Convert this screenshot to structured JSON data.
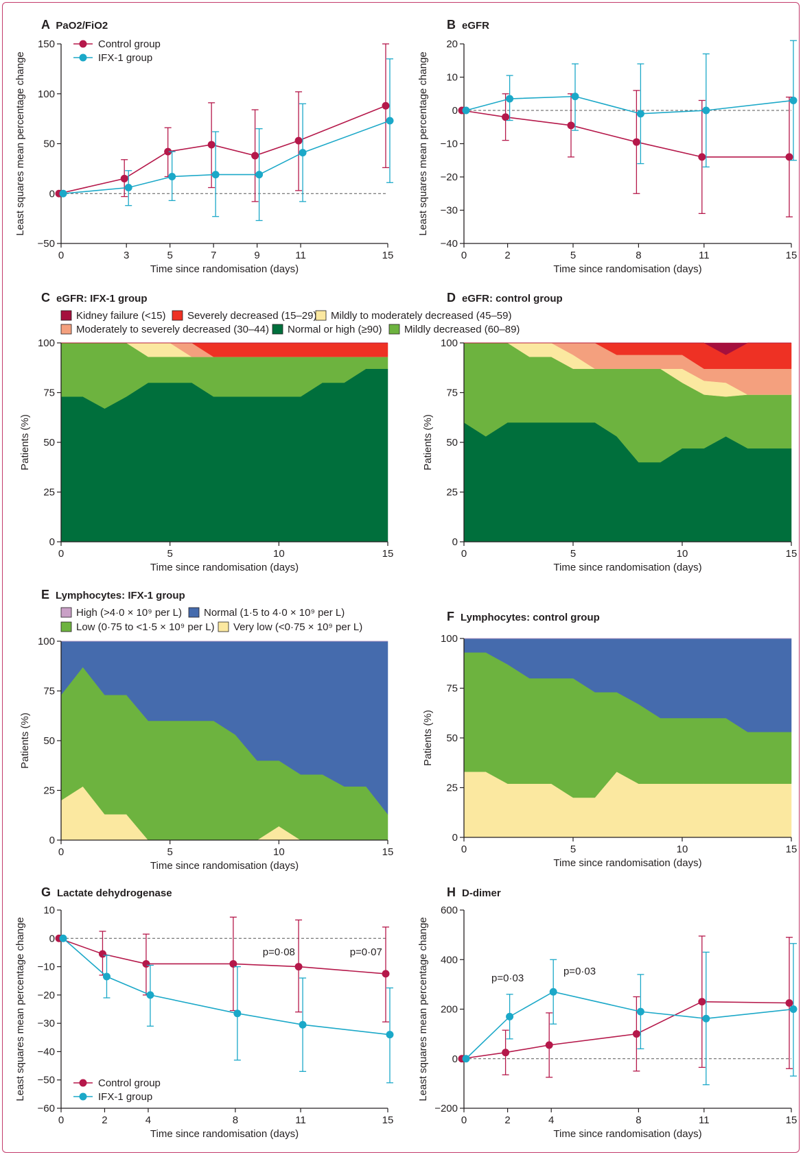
{
  "colors": {
    "control": "#b5184a",
    "ifx": "#1ba8c8",
    "kidney_failure": "#a50f3d",
    "severely_decreased": "#ee3124",
    "mildly_to_moderately": "#fbe8a0",
    "moderately_to_severely": "#f4a07e",
    "normal_or_high": "#006f3c",
    "mildly_decreased": "#6db33f",
    "lym_high": "#c9a0c6",
    "lym_normal": "#456bad",
    "lym_low": "#6db33f",
    "lym_very_low": "#fbe8a0"
  },
  "chart_data": [
    {
      "id": "A",
      "letter": "A",
      "type": "line",
      "title": "PaO2/FiO2",
      "xlabel": "Time since randomisation (days)",
      "ylabel": "Least squares mean percentage change",
      "xlim": [
        0,
        15
      ],
      "ylim": [
        -50,
        150
      ],
      "xticks": [
        "0",
        "3",
        "5",
        "7",
        "9",
        "11",
        "15"
      ],
      "yticks": [
        "150",
        "100",
        "50",
        "0",
        "−50"
      ],
      "legend": [
        "Control group",
        "IFX-1 group"
      ],
      "series": [
        {
          "name": "Control group",
          "x": [
            0,
            3,
            5,
            7,
            9,
            11,
            15
          ],
          "y": [
            0,
            15,
            42,
            49,
            38,
            53,
            88
          ],
          "lower": [
            0,
            -3,
            17,
            6,
            -8,
            3,
            26
          ],
          "upper": [
            0,
            34,
            66,
            91,
            84,
            102,
            150
          ]
        },
        {
          "name": "IFX-1 group",
          "x": [
            0,
            3,
            5,
            7,
            9,
            11,
            15
          ],
          "y": [
            0,
            6,
            17,
            19,
            19,
            41,
            73
          ],
          "lower": [
            0,
            -12,
            -7,
            -23,
            -27,
            -8,
            11
          ],
          "upper": [
            0,
            23,
            42,
            62,
            65,
            90,
            135
          ]
        }
      ]
    },
    {
      "id": "B",
      "letter": "B",
      "type": "line",
      "title": "eGFR",
      "xlabel": "Time since randomisation (days)",
      "ylabel": "Least squares mean percentage change",
      "xlim": [
        0,
        15
      ],
      "ylim": [
        -40,
        20
      ],
      "xticks": [
        "0",
        "2",
        "5",
        "8",
        "11",
        "15"
      ],
      "yticks": [
        "20",
        "10",
        "0",
        "−10",
        "−20",
        "−30",
        "−40"
      ],
      "series": [
        {
          "name": "Control group",
          "x": [
            0,
            2,
            5,
            8,
            11,
            15
          ],
          "y": [
            0,
            -2,
            -4.5,
            -9.5,
            -14,
            -14
          ],
          "lower": [
            0,
            -9,
            -14,
            -25,
            -31,
            -32
          ],
          "upper": [
            0,
            5,
            5,
            6,
            3,
            4
          ]
        },
        {
          "name": "IFX-1 group",
          "x": [
            0,
            2,
            5,
            8,
            11,
            15
          ],
          "y": [
            0,
            3.5,
            4.2,
            -1,
            0,
            3
          ],
          "lower": [
            0,
            -3,
            -6,
            -16,
            -17,
            -15
          ],
          "upper": [
            0,
            10.5,
            14,
            14,
            17,
            21
          ]
        }
      ]
    },
    {
      "id": "C",
      "letter": "C",
      "type": "area",
      "title": "eGFR: IFX-1 group",
      "xlabel": "Time since randomisation (days)",
      "ylabel": "Patients (%)",
      "xlim": [
        0,
        15
      ],
      "ylim": [
        0,
        100
      ],
      "xticks": [
        "0",
        "5",
        "10",
        "15"
      ],
      "yticks": [
        "100",
        "75",
        "50",
        "25",
        "0"
      ],
      "legend": [
        {
          "label": "Kidney failure (<15)",
          "color": "#a50f3d"
        },
        {
          "label": "Severely decreased (15–29)",
          "color": "#ee3124"
        },
        {
          "label": "Mildly to moderately decreased (45–59)",
          "color": "#fbe8a0"
        },
        {
          "label": "Moderately to severely decreased (30–44)",
          "color": "#f4a07e"
        },
        {
          "label": "Normal or high (≥90)",
          "color": "#006f3c"
        },
        {
          "label": "Mildly decreased (60–89)",
          "color": "#6db33f"
        }
      ],
      "x": [
        0,
        1,
        2,
        3,
        4,
        5,
        6,
        7,
        8,
        9,
        10,
        11,
        12,
        13,
        14,
        15
      ],
      "series": [
        {
          "name": "Normal or high (≥90)",
          "color": "#006f3c",
          "values": [
            73,
            73,
            67,
            73,
            80,
            80,
            80,
            73,
            73,
            73,
            73,
            73,
            80,
            80,
            87,
            87
          ]
        },
        {
          "name": "Mildly decreased (60–89)",
          "color": "#6db33f",
          "values": [
            27,
            27,
            33,
            27,
            13,
            13,
            13,
            20,
            20,
            20,
            20,
            20,
            13,
            13,
            6,
            6
          ]
        },
        {
          "name": "Mildly to moderately decreased (45–59)",
          "color": "#fbe8a0",
          "values": [
            0,
            0,
            0,
            0,
            7,
            7,
            0,
            0,
            0,
            0,
            0,
            0,
            0,
            0,
            0,
            0
          ]
        },
        {
          "name": "Moderately to severely decreased (30–44)",
          "color": "#f4a07e",
          "values": [
            0,
            0,
            0,
            0,
            0,
            0,
            7,
            0,
            0,
            0,
            0,
            0,
            0,
            0,
            0,
            0
          ]
        },
        {
          "name": "Severely decreased (15–29)",
          "color": "#ee3124",
          "values": [
            0,
            0,
            0,
            0,
            0,
            0,
            0,
            7,
            7,
            7,
            7,
            7,
            7,
            7,
            7,
            7
          ]
        },
        {
          "name": "Kidney failure (<15)",
          "color": "#a50f3d",
          "values": [
            0,
            0,
            0,
            0,
            0,
            0,
            0,
            0,
            0,
            0,
            0,
            0,
            0,
            0,
            0,
            0
          ]
        }
      ]
    },
    {
      "id": "D",
      "letter": "D",
      "type": "area",
      "title": "eGFR: control group",
      "xlabel": "Time since randomisation (days)",
      "ylabel": "Patients (%)",
      "xlim": [
        0,
        15
      ],
      "ylim": [
        0,
        100
      ],
      "xticks": [
        "0",
        "5",
        "10",
        "15"
      ],
      "yticks": [
        "100",
        "75",
        "50",
        "25",
        "0"
      ],
      "x": [
        0,
        1,
        2,
        3,
        4,
        5,
        6,
        7,
        8,
        9,
        10,
        11,
        12,
        13,
        14,
        15
      ],
      "series": [
        {
          "name": "Normal or high (≥90)",
          "color": "#006f3c",
          "values": [
            60,
            53,
            60,
            60,
            60,
            60,
            60,
            53,
            40,
            40,
            47,
            47,
            53,
            47,
            47,
            47
          ]
        },
        {
          "name": "Mildly decreased (60–89)",
          "color": "#6db33f",
          "values": [
            40,
            47,
            40,
            33,
            33,
            27,
            27,
            34,
            47,
            47,
            33,
            27,
            20,
            27,
            27,
            27
          ]
        },
        {
          "name": "Mildly to moderately decreased (45–59)",
          "color": "#fbe8a0",
          "values": [
            0,
            0,
            0,
            7,
            7,
            7,
            0,
            0,
            0,
            0,
            7,
            7,
            7,
            0,
            0,
            0
          ]
        },
        {
          "name": "Moderately to severely decreased (30–44)",
          "color": "#f4a07e",
          "values": [
            0,
            0,
            0,
            0,
            0,
            6,
            13,
            7,
            7,
            7,
            7,
            6,
            7,
            13,
            13,
            13
          ]
        },
        {
          "name": "Severely decreased (15–29)",
          "color": "#ee3124",
          "values": [
            0,
            0,
            0,
            0,
            0,
            0,
            0,
            6,
            6,
            6,
            6,
            13,
            7,
            13,
            13,
            13
          ]
        },
        {
          "name": "Kidney failure (<15)",
          "color": "#a50f3d",
          "values": [
            0,
            0,
            0,
            0,
            0,
            0,
            0,
            0,
            0,
            0,
            0,
            0,
            6,
            0,
            0,
            0
          ]
        }
      ]
    },
    {
      "id": "E",
      "letter": "E",
      "type": "area",
      "title": "Lymphocytes: IFX-1 group",
      "xlabel": "Time since randomisation (days)",
      "ylabel": "Patients (%)",
      "xlim": [
        0,
        15
      ],
      "ylim": [
        0,
        100
      ],
      "xticks": [
        "0",
        "5",
        "10",
        "15"
      ],
      "yticks": [
        "100",
        "75",
        "50",
        "25",
        "0"
      ],
      "legend": [
        {
          "label": "High (>4·0 × 10⁹ per L)",
          "color": "#c9a0c6"
        },
        {
          "label": "Normal (1·5 to 4·0 × 10⁹ per L)",
          "color": "#456bad"
        },
        {
          "label": "Low (0·75 to <1·5 × 10⁹ per L)",
          "color": "#6db33f"
        },
        {
          "label": "Very low (<0·75 × 10⁹ per L)",
          "color": "#fbe8a0"
        }
      ],
      "x": [
        0,
        1,
        2,
        3,
        4,
        5,
        6,
        7,
        8,
        9,
        10,
        11,
        12,
        13,
        14,
        15
      ],
      "series": [
        {
          "name": "Very low (<0·75 × 10⁹ per L)",
          "color": "#fbe8a0",
          "values": [
            20,
            27,
            13,
            13,
            0,
            0,
            0,
            0,
            0,
            0,
            7,
            0,
            0,
            0,
            0,
            0
          ]
        },
        {
          "name": "Low (0·75 to <1·5 × 10⁹ per L)",
          "color": "#6db33f",
          "values": [
            53,
            60,
            60,
            60,
            60,
            60,
            60,
            60,
            53,
            40,
            33,
            33,
            33,
            27,
            27,
            13
          ]
        },
        {
          "name": "Normal (1·5 to 4·0 × 10⁹ per L)",
          "color": "#456bad",
          "values": [
            27,
            13,
            27,
            27,
            40,
            40,
            40,
            40,
            47,
            60,
            60,
            67,
            67,
            73,
            73,
            87
          ]
        },
        {
          "name": "High (>4·0 × 10⁹ per L)",
          "color": "#c9a0c6",
          "values": [
            0,
            0,
            0,
            0,
            0,
            0,
            0,
            0,
            0,
            0,
            0,
            0,
            0,
            0,
            0,
            0
          ]
        }
      ]
    },
    {
      "id": "F",
      "letter": "F",
      "type": "area",
      "title": "Lymphocytes: control group",
      "xlabel": "Time since randomisation (days)",
      "ylabel": "Patients (%)",
      "xlim": [
        0,
        15
      ],
      "ylim": [
        0,
        100
      ],
      "xticks": [
        "0",
        "5",
        "10",
        "15"
      ],
      "yticks": [
        "100",
        "75",
        "50",
        "25",
        "0"
      ],
      "x": [
        0,
        1,
        2,
        3,
        4,
        5,
        6,
        7,
        8,
        9,
        10,
        11,
        12,
        13,
        14,
        15
      ],
      "series": [
        {
          "name": "Very low (<0·75 × 10⁹ per L)",
          "color": "#fbe8a0",
          "values": [
            33,
            33,
            27,
            27,
            27,
            20,
            20,
            33,
            27,
            27,
            27,
            27,
            27,
            27,
            27,
            27
          ]
        },
        {
          "name": "Low (0·75 to <1·5 × 10⁹ per L)",
          "color": "#6db33f",
          "values": [
            60,
            60,
            60,
            53,
            53,
            60,
            53,
            40,
            40,
            33,
            33,
            33,
            33,
            26,
            26,
            26
          ]
        },
        {
          "name": "Normal (1·5 to 4·0 × 10⁹ per L)",
          "color": "#456bad",
          "values": [
            7,
            7,
            13,
            20,
            20,
            20,
            27,
            27,
            33,
            40,
            40,
            40,
            40,
            47,
            47,
            47
          ]
        },
        {
          "name": "High (>4·0 × 10⁹ per L)",
          "color": "#c9a0c6",
          "values": [
            0,
            0,
            0,
            0,
            0,
            0,
            0,
            0,
            0,
            0,
            0,
            0,
            0,
            0,
            0,
            0
          ]
        }
      ]
    },
    {
      "id": "G",
      "letter": "G",
      "type": "line",
      "title": "Lactate dehydrogenase",
      "xlabel": "Time since randomisation (days)",
      "ylabel": "Least squares mean percentage change",
      "xlim": [
        0,
        15
      ],
      "ylim": [
        -60,
        10
      ],
      "xticks": [
        "0",
        "2",
        "4",
        "8",
        "11",
        "15"
      ],
      "yticks": [
        "10",
        "0",
        "−10",
        "−20",
        "−30",
        "−40",
        "−50",
        "−60"
      ],
      "legend": [
        "Control group",
        "IFX-1 group"
      ],
      "annotations": [
        {
          "text": "p=0·08",
          "x": 10,
          "y": -6
        },
        {
          "text": "p=0·07",
          "x": 14,
          "y": -6
        }
      ],
      "series": [
        {
          "name": "Control group",
          "x": [
            0,
            2,
            4,
            8,
            11,
            15
          ],
          "y": [
            0,
            -5.5,
            -9,
            -9,
            -10,
            -12.5
          ],
          "lower": [
            0,
            -13,
            -20,
            -25.5,
            -26,
            -29.5
          ],
          "upper": [
            0,
            2.5,
            1.5,
            7.5,
            6.5,
            4
          ]
        },
        {
          "name": "IFX-1 group",
          "x": [
            0,
            2,
            4,
            8,
            11,
            15
          ],
          "y": [
            0,
            -13.5,
            -20,
            -26.5,
            -30.5,
            -34
          ],
          "lower": [
            0,
            -21,
            -31,
            -43,
            -47,
            -51
          ],
          "upper": [
            0,
            -6,
            -9.5,
            -10,
            -14,
            -17.5
          ]
        }
      ]
    },
    {
      "id": "H",
      "letter": "H",
      "type": "line",
      "title": "D-dimer",
      "xlabel": "Time since randomisation (days)",
      "ylabel": "Least squares mean percentage change",
      "xlim": [
        0,
        15
      ],
      "ylim": [
        -200,
        600
      ],
      "xticks": [
        "0",
        "2",
        "4",
        "8",
        "11",
        "15"
      ],
      "yticks": [
        "600",
        "400",
        "200",
        "0",
        "−200"
      ],
      "annotations": [
        {
          "text": "p=0·03",
          "x": 2,
          "y": 312
        },
        {
          "text": "p=0·03",
          "x": 5.3,
          "y": 340
        }
      ],
      "series": [
        {
          "name": "Control group",
          "x": [
            0,
            2,
            4,
            8,
            11,
            15
          ],
          "y": [
            0,
            25,
            55,
            100,
            230,
            225
          ],
          "lower": [
            0,
            -65,
            -75,
            -50,
            -35,
            -40
          ],
          "upper": [
            0,
            115,
            185,
            250,
            495,
            490
          ]
        },
        {
          "name": "IFX-1 group",
          "x": [
            0,
            2,
            4,
            8,
            11,
            15
          ],
          "y": [
            0,
            170,
            270,
            190,
            162,
            200
          ],
          "lower": [
            0,
            80,
            140,
            40,
            -105,
            -70
          ],
          "upper": [
            0,
            260,
            400,
            340,
            430,
            465
          ]
        }
      ]
    }
  ]
}
